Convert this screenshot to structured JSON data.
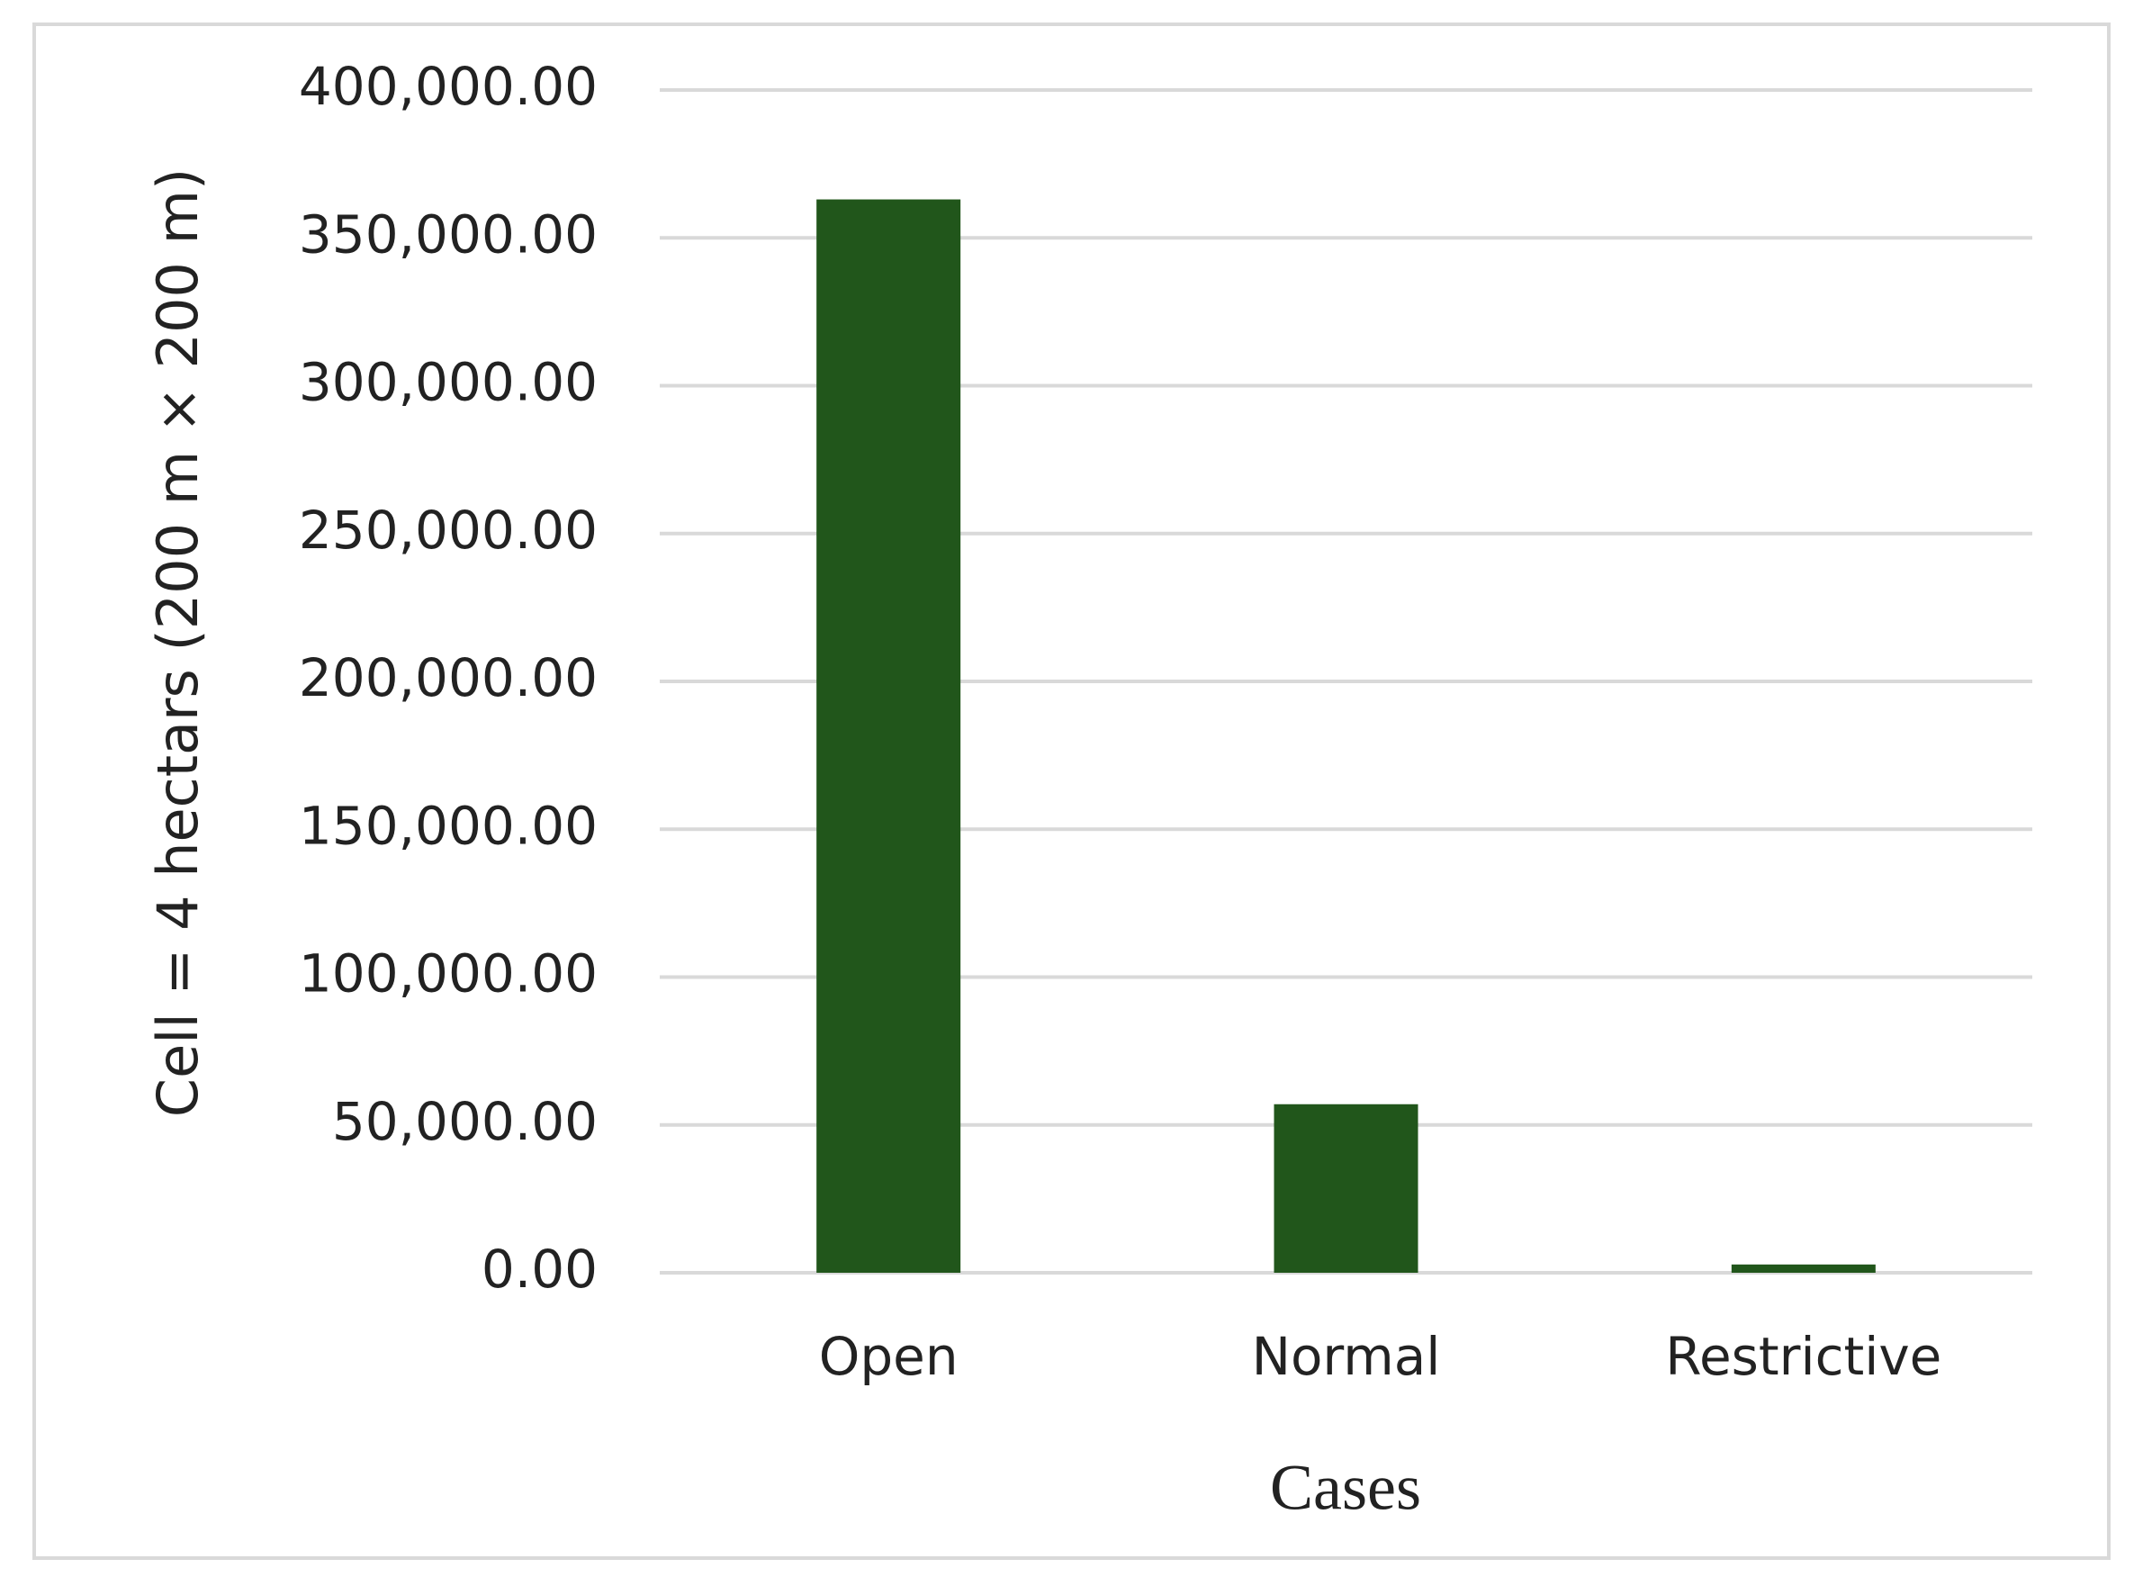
{
  "chart_data": {
    "type": "bar",
    "x_label": "Cases",
    "y_label": "Cell = 4 hectars (200 m × 200 m)",
    "categories": [
      "Open",
      "Normal",
      "Restrictive"
    ],
    "values": [
      363000,
      57000,
      2800
    ],
    "color": "#21561b",
    "ylim": [
      0,
      400000
    ],
    "yticks": [
      {
        "value": 0,
        "label": "0.00"
      },
      {
        "value": 50000,
        "label": "50,000.00"
      },
      {
        "value": 100000,
        "label": "100,000.00"
      },
      {
        "value": 150000,
        "label": "150,000.00"
      },
      {
        "value": 200000,
        "label": "200,000.00"
      },
      {
        "value": 250000,
        "label": "250,000.00"
      },
      {
        "value": 300000,
        "label": "300,000.00"
      },
      {
        "value": 350000,
        "label": "350,000.00"
      },
      {
        "value": 400000,
        "label": "400,000.00"
      }
    ],
    "grid": true
  }
}
